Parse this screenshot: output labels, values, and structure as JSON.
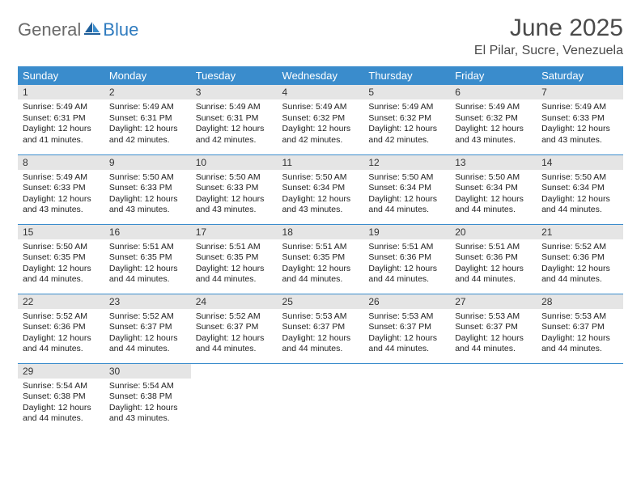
{
  "logo": {
    "general": "General",
    "blue": "Blue"
  },
  "header": {
    "month_title": "June 2025",
    "location": "El Pilar, Sucre, Venezuela"
  },
  "colors": {
    "header_bg": "#3a8ccc",
    "header_text": "#ffffff",
    "daynum_bg": "#e5e5e5",
    "row_border": "#3a8ccc",
    "logo_gray": "#6a6a6a",
    "logo_blue": "#2f7bbf"
  },
  "weekdays": [
    "Sunday",
    "Monday",
    "Tuesday",
    "Wednesday",
    "Thursday",
    "Friday",
    "Saturday"
  ],
  "weeks": [
    [
      {
        "n": "1",
        "sr": "Sunrise: 5:49 AM",
        "ss": "Sunset: 6:31 PM",
        "dl": "Daylight: 12 hours and 41 minutes."
      },
      {
        "n": "2",
        "sr": "Sunrise: 5:49 AM",
        "ss": "Sunset: 6:31 PM",
        "dl": "Daylight: 12 hours and 42 minutes."
      },
      {
        "n": "3",
        "sr": "Sunrise: 5:49 AM",
        "ss": "Sunset: 6:31 PM",
        "dl": "Daylight: 12 hours and 42 minutes."
      },
      {
        "n": "4",
        "sr": "Sunrise: 5:49 AM",
        "ss": "Sunset: 6:32 PM",
        "dl": "Daylight: 12 hours and 42 minutes."
      },
      {
        "n": "5",
        "sr": "Sunrise: 5:49 AM",
        "ss": "Sunset: 6:32 PM",
        "dl": "Daylight: 12 hours and 42 minutes."
      },
      {
        "n": "6",
        "sr": "Sunrise: 5:49 AM",
        "ss": "Sunset: 6:32 PM",
        "dl": "Daylight: 12 hours and 43 minutes."
      },
      {
        "n": "7",
        "sr": "Sunrise: 5:49 AM",
        "ss": "Sunset: 6:33 PM",
        "dl": "Daylight: 12 hours and 43 minutes."
      }
    ],
    [
      {
        "n": "8",
        "sr": "Sunrise: 5:49 AM",
        "ss": "Sunset: 6:33 PM",
        "dl": "Daylight: 12 hours and 43 minutes."
      },
      {
        "n": "9",
        "sr": "Sunrise: 5:50 AM",
        "ss": "Sunset: 6:33 PM",
        "dl": "Daylight: 12 hours and 43 minutes."
      },
      {
        "n": "10",
        "sr": "Sunrise: 5:50 AM",
        "ss": "Sunset: 6:33 PM",
        "dl": "Daylight: 12 hours and 43 minutes."
      },
      {
        "n": "11",
        "sr": "Sunrise: 5:50 AM",
        "ss": "Sunset: 6:34 PM",
        "dl": "Daylight: 12 hours and 43 minutes."
      },
      {
        "n": "12",
        "sr": "Sunrise: 5:50 AM",
        "ss": "Sunset: 6:34 PM",
        "dl": "Daylight: 12 hours and 44 minutes."
      },
      {
        "n": "13",
        "sr": "Sunrise: 5:50 AM",
        "ss": "Sunset: 6:34 PM",
        "dl": "Daylight: 12 hours and 44 minutes."
      },
      {
        "n": "14",
        "sr": "Sunrise: 5:50 AM",
        "ss": "Sunset: 6:34 PM",
        "dl": "Daylight: 12 hours and 44 minutes."
      }
    ],
    [
      {
        "n": "15",
        "sr": "Sunrise: 5:50 AM",
        "ss": "Sunset: 6:35 PM",
        "dl": "Daylight: 12 hours and 44 minutes."
      },
      {
        "n": "16",
        "sr": "Sunrise: 5:51 AM",
        "ss": "Sunset: 6:35 PM",
        "dl": "Daylight: 12 hours and 44 minutes."
      },
      {
        "n": "17",
        "sr": "Sunrise: 5:51 AM",
        "ss": "Sunset: 6:35 PM",
        "dl": "Daylight: 12 hours and 44 minutes."
      },
      {
        "n": "18",
        "sr": "Sunrise: 5:51 AM",
        "ss": "Sunset: 6:35 PM",
        "dl": "Daylight: 12 hours and 44 minutes."
      },
      {
        "n": "19",
        "sr": "Sunrise: 5:51 AM",
        "ss": "Sunset: 6:36 PM",
        "dl": "Daylight: 12 hours and 44 minutes."
      },
      {
        "n": "20",
        "sr": "Sunrise: 5:51 AM",
        "ss": "Sunset: 6:36 PM",
        "dl": "Daylight: 12 hours and 44 minutes."
      },
      {
        "n": "21",
        "sr": "Sunrise: 5:52 AM",
        "ss": "Sunset: 6:36 PM",
        "dl": "Daylight: 12 hours and 44 minutes."
      }
    ],
    [
      {
        "n": "22",
        "sr": "Sunrise: 5:52 AM",
        "ss": "Sunset: 6:36 PM",
        "dl": "Daylight: 12 hours and 44 minutes."
      },
      {
        "n": "23",
        "sr": "Sunrise: 5:52 AM",
        "ss": "Sunset: 6:37 PM",
        "dl": "Daylight: 12 hours and 44 minutes."
      },
      {
        "n": "24",
        "sr": "Sunrise: 5:52 AM",
        "ss": "Sunset: 6:37 PM",
        "dl": "Daylight: 12 hours and 44 minutes."
      },
      {
        "n": "25",
        "sr": "Sunrise: 5:53 AM",
        "ss": "Sunset: 6:37 PM",
        "dl": "Daylight: 12 hours and 44 minutes."
      },
      {
        "n": "26",
        "sr": "Sunrise: 5:53 AM",
        "ss": "Sunset: 6:37 PM",
        "dl": "Daylight: 12 hours and 44 minutes."
      },
      {
        "n": "27",
        "sr": "Sunrise: 5:53 AM",
        "ss": "Sunset: 6:37 PM",
        "dl": "Daylight: 12 hours and 44 minutes."
      },
      {
        "n": "28",
        "sr": "Sunrise: 5:53 AM",
        "ss": "Sunset: 6:37 PM",
        "dl": "Daylight: 12 hours and 44 minutes."
      }
    ],
    [
      {
        "n": "29",
        "sr": "Sunrise: 5:54 AM",
        "ss": "Sunset: 6:38 PM",
        "dl": "Daylight: 12 hours and 44 minutes."
      },
      {
        "n": "30",
        "sr": "Sunrise: 5:54 AM",
        "ss": "Sunset: 6:38 PM",
        "dl": "Daylight: 12 hours and 43 minutes."
      },
      null,
      null,
      null,
      null,
      null
    ]
  ]
}
